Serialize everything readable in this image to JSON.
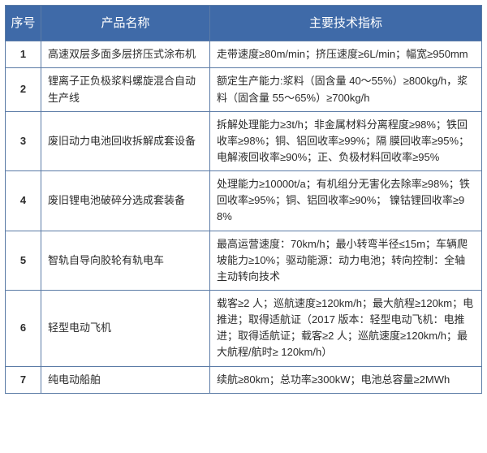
{
  "table": {
    "header_bg": "#3f6aa8",
    "header_text_color": "#ffffff",
    "border_color": "#5b7ba6",
    "body_text_color": "#2b2b2b",
    "columns": [
      "序号",
      "产品名称",
      "主要技术指标"
    ],
    "rows": [
      {
        "index": "1",
        "name": "高速双层多面多层挤压式涂布机",
        "spec": "走带速度≥80m/min；挤压速度≥6L/min；幅宽≥950mm"
      },
      {
        "index": "2",
        "name": "锂离子正负极浆料螺旋混合自动生产线",
        "spec": "额定生产能力:浆料（固含量 40～55%）≥800kg/h，浆料（固含量 55～65%）≥700kg/h"
      },
      {
        "index": "3",
        "name": "废旧动力电池回收拆解成套设备",
        "spec": "拆解处理能力≥3t/h；非金属材料分离程度≥98%；铁回收率≥98%；铜、铝回收率≥99%；隔 膜回收率≥95%；电解液回收率≥90%；正、负极材料回收率≥95%"
      },
      {
        "index": "4",
        "name": "废旧锂电池破碎分选成套装备",
        "spec": "处理能力≥10000t/a；有机组分无害化去除率≥98%；铁回收率≥95%；铜、铝回收率≥90%； 镍钴锂回收率≥98%"
      },
      {
        "index": "5",
        "name": "智轨自导向胶轮有轨电车",
        "spec": "最高运营速度：70km/h；最小转弯半径≤15m；车辆爬坡能力≥10%；驱动能源：动力电池；转向控制：全轴主动转向技术"
      },
      {
        "index": "6",
        "name": "轻型电动飞机",
        "spec": "载客≥2 人；巡航速度≥120km/h；最大航程≥120km；电推进；取得适航证（2017 版本：轻型电动飞机：电推进；取得适航证；载客≥2 人；巡航速度≥120km/h；最大航程/航时≥ 120km/h）"
      },
      {
        "index": "7",
        "name": "纯电动船舶",
        "spec": "续航≥80km；总功率≥300kW；电池总容量≥2MWh"
      }
    ]
  }
}
